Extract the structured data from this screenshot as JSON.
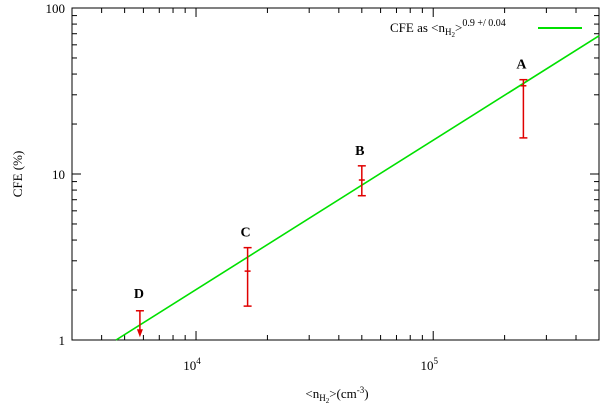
{
  "chart_data": {
    "type": "scatter",
    "x_scale": "log",
    "y_scale": "log",
    "xlim": [
      3000,
      500000
    ],
    "ylim": [
      1,
      100
    ],
    "xlabel": "<n_H2>(cm^-3)",
    "ylabel": "CFE (%)",
    "x_ticks": [
      {
        "value": 10000,
        "label": "10",
        "exp": "4"
      },
      {
        "value": 100000,
        "label": "10",
        "exp": "5"
      }
    ],
    "y_ticks": [
      {
        "value": 1,
        "label": "1"
      },
      {
        "value": 10,
        "label": "10"
      },
      {
        "value": 100,
        "label": "100"
      }
    ],
    "grid": false,
    "legend": {
      "position": "top-right",
      "entries": [
        {
          "text": "CFE as <n_H2>^0.9 +/ 0.04",
          "color": "#00e000"
        }
      ]
    },
    "fit_line": {
      "exponent": 0.9,
      "exponent_error": 0.04,
      "points": [
        [
          4600,
          1.0
        ],
        [
          500000,
          68
        ]
      ],
      "color": "#00e000"
    },
    "points": [
      {
        "label": "D",
        "x": 5800,
        "y_high": 1.5,
        "upper_limit": true
      },
      {
        "label": "C",
        "x": 16500,
        "y": 2.6,
        "y_low": 1.6,
        "y_high": 3.6
      },
      {
        "label": "B",
        "x": 50000,
        "y": 9.2,
        "y_low": 7.4,
        "y_high": 11.2
      },
      {
        "label": "A",
        "x": 240000,
        "y": 34,
        "y_low": 16.5,
        "y_high": 37
      }
    ],
    "error_color": "#e00000"
  }
}
